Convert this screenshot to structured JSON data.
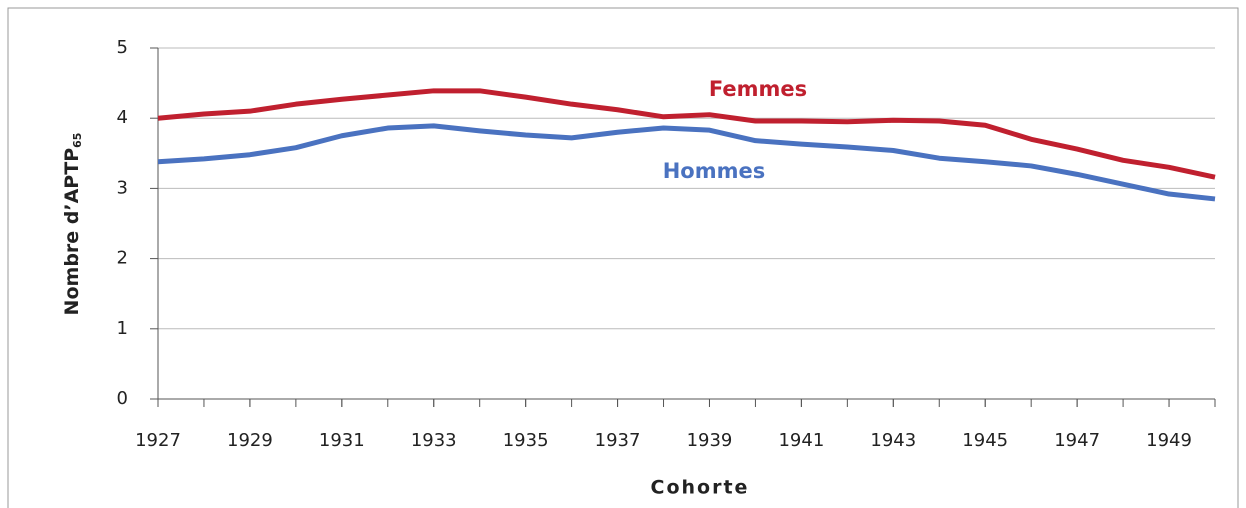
{
  "chart_data": {
    "type": "line",
    "xlabel": "Cohorte",
    "ylabel": {
      "text": "Nombre d’APTP",
      "subscript": "65"
    },
    "x": [
      1927,
      1928,
      1929,
      1930,
      1931,
      1932,
      1933,
      1934,
      1935,
      1936,
      1937,
      1938,
      1939,
      1940,
      1941,
      1942,
      1943,
      1944,
      1945,
      1946,
      1947,
      1948,
      1949,
      1950
    ],
    "series": [
      {
        "name": "Femmes",
        "color": "#c0202f",
        "values": [
          4.0,
          4.06,
          4.1,
          4.2,
          4.27,
          4.33,
          4.39,
          4.39,
          4.3,
          4.2,
          4.12,
          4.02,
          4.05,
          3.96,
          3.96,
          3.95,
          3.97,
          3.96,
          3.9,
          3.7,
          3.56,
          3.4,
          3.3,
          3.16
        ]
      },
      {
        "name": "Hommes",
        "color": "#4a72c0",
        "values": [
          3.38,
          3.42,
          3.48,
          3.58,
          3.75,
          3.86,
          3.89,
          3.82,
          3.76,
          3.72,
          3.8,
          3.86,
          3.83,
          3.68,
          3.63,
          3.59,
          3.54,
          3.43,
          3.38,
          3.32,
          3.2,
          3.06,
          2.92,
          2.85
        ]
      }
    ],
    "xlim": [
      1927,
      1950
    ],
    "xticks": [
      1927,
      1929,
      1931,
      1933,
      1935,
      1937,
      1939,
      1941,
      1943,
      1945,
      1947,
      1949
    ],
    "ylim": [
      0,
      5
    ],
    "yticks": [
      0,
      1,
      2,
      3,
      4,
      5
    ],
    "grid": true
  }
}
